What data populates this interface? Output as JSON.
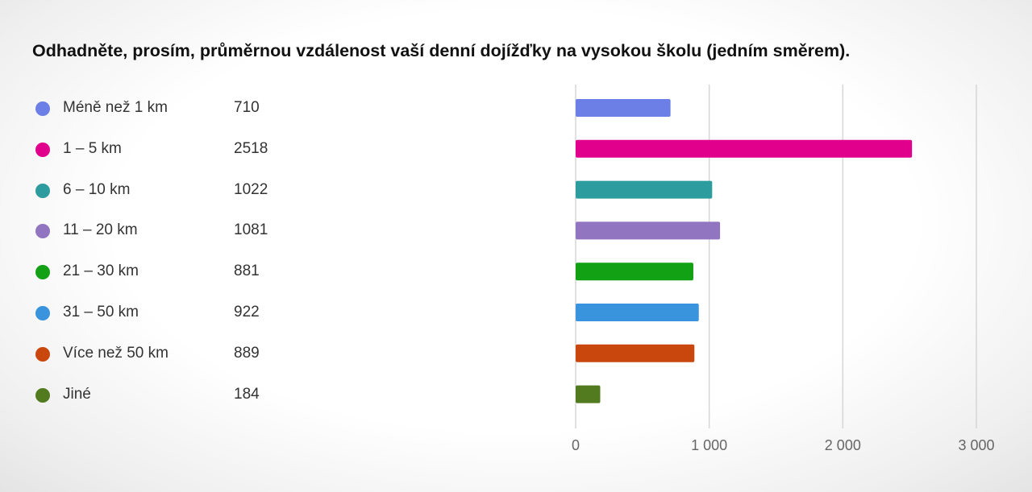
{
  "title": "Odhadněte, prosím, průměrnou vzdálenost vaší denní dojížďky na vysokou školu (jedním směrem).",
  "chart_data": {
    "type": "bar",
    "orientation": "horizontal",
    "title": "Odhadněte, prosím, průměrnou vzdálenost vaší denní dojížďky na vysokou školu (jedním směrem).",
    "categories": [
      "Méně než 1 km",
      "1 – 5 km",
      "6 – 10 km",
      "11 – 20 km",
      "21 – 30 km",
      "31 – 50 km",
      "Více než 50 km",
      "Jiné"
    ],
    "values": [
      710,
      2518,
      1022,
      1081,
      881,
      922,
      889,
      184
    ],
    "value_labels": [
      "710",
      "2518",
      "1022",
      "1081",
      "881",
      "922",
      "889",
      "184"
    ],
    "colors": [
      "#6B7FE6",
      "#E0008C",
      "#2C9C9E",
      "#9175C0",
      "#12A014",
      "#3A93DD",
      "#C9470D",
      "#527A1E"
    ],
    "xlim": [
      0,
      3000
    ],
    "x_ticks": [
      0,
      1000,
      2000,
      3000
    ],
    "x_tick_labels": [
      "0",
      "1 000",
      "2 000",
      "3 000"
    ],
    "grid": true,
    "legend_position": "left"
  }
}
